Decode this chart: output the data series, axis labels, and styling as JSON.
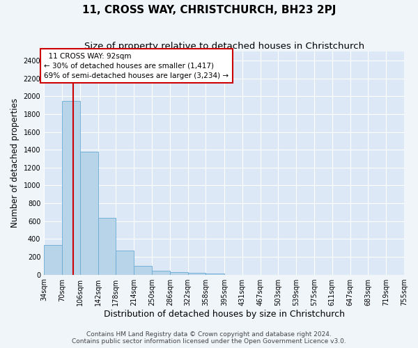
{
  "title": "11, CROSS WAY, CHRISTCHURCH, BH23 2PJ",
  "subtitle": "Size of property relative to detached houses in Christchurch",
  "xlabel": "Distribution of detached houses by size in Christchurch",
  "ylabel": "Number of detached properties",
  "bar_values": [
    330,
    1950,
    1380,
    640,
    270,
    100,
    45,
    30,
    20,
    15,
    0,
    0,
    0,
    0,
    0,
    0,
    0,
    0,
    0,
    0
  ],
  "bin_edges": [
    34,
    70,
    106,
    142,
    178,
    214,
    250,
    286,
    322,
    358,
    395,
    431,
    467,
    503,
    539,
    575,
    611,
    647,
    683,
    719,
    755
  ],
  "bin_labels": [
    "34sqm",
    "70sqm",
    "106sqm",
    "142sqm",
    "178sqm",
    "214sqm",
    "250sqm",
    "286sqm",
    "322sqm",
    "358sqm",
    "395sqm",
    "431sqm",
    "467sqm",
    "503sqm",
    "539sqm",
    "575sqm",
    "611sqm",
    "647sqm",
    "683sqm",
    "719sqm",
    "755sqm"
  ],
  "bar_color": "#b8d4e8",
  "bar_edge_color": "#6aaad4",
  "property_line_x": 92,
  "property_line_color": "#cc0000",
  "annotation_text": "  11 CROSS WAY: 92sqm\n← 30% of detached houses are smaller (1,417)\n69% of semi-detached houses are larger (3,234) →",
  "annotation_box_color": "#ffffff",
  "annotation_box_edge_color": "#cc0000",
  "ylim": [
    0,
    2500
  ],
  "yticks": [
    0,
    200,
    400,
    600,
    800,
    1000,
    1200,
    1400,
    1600,
    1800,
    2000,
    2200,
    2400
  ],
  "footer_line1": "Contains HM Land Registry data © Crown copyright and database right 2024.",
  "footer_line2": "Contains public sector information licensed under the Open Government Licence v3.0.",
  "background_color": "#f0f5fa",
  "plot_bg_color": "#dce8f5",
  "grid_color": "#ffffff",
  "title_fontsize": 11,
  "subtitle_fontsize": 9.5,
  "xlabel_fontsize": 9,
  "ylabel_fontsize": 8.5,
  "tick_fontsize": 7,
  "footer_fontsize": 6.5,
  "annot_fontsize": 7.5
}
